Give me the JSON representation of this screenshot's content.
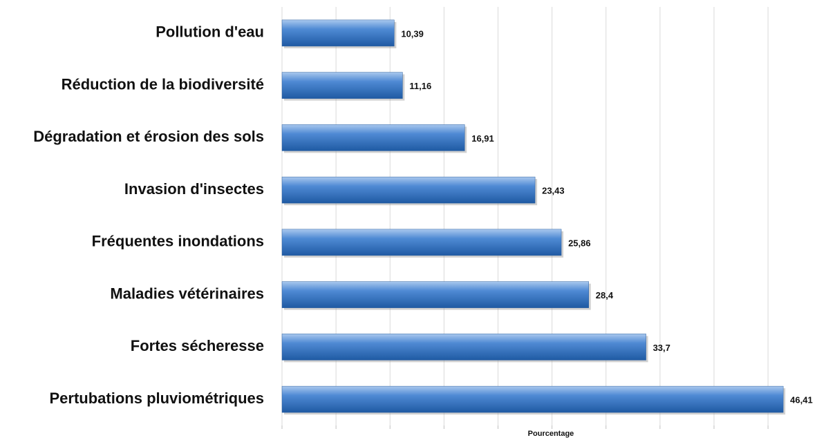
{
  "chart_data": {
    "type": "bar",
    "orientation": "horizontal",
    "x_label": "Pourcentage",
    "categories": [
      "Pollution d'eau",
      "Réduction de la biodiversité",
      "Dégradation et érosion des sols",
      "Invasion d'insectes",
      "Fréquentes inondations",
      "Maladies vétérinaires",
      "Fortes sécheresse",
      "Pertubations pluviométriques"
    ],
    "values": [
      10.39,
      11.16,
      16.91,
      23.43,
      25.86,
      28.4,
      33.7,
      46.41
    ],
    "value_labels": [
      "10,39",
      "11,16",
      "16,91",
      "23,43",
      "25,86",
      "28,4",
      "33,7",
      "46,41"
    ],
    "color": "#3a78c2",
    "xlim": [
      0,
      48
    ],
    "xticks": [
      0,
      5,
      10,
      15,
      20,
      25,
      30,
      35,
      40,
      45
    ],
    "grid": true
  }
}
